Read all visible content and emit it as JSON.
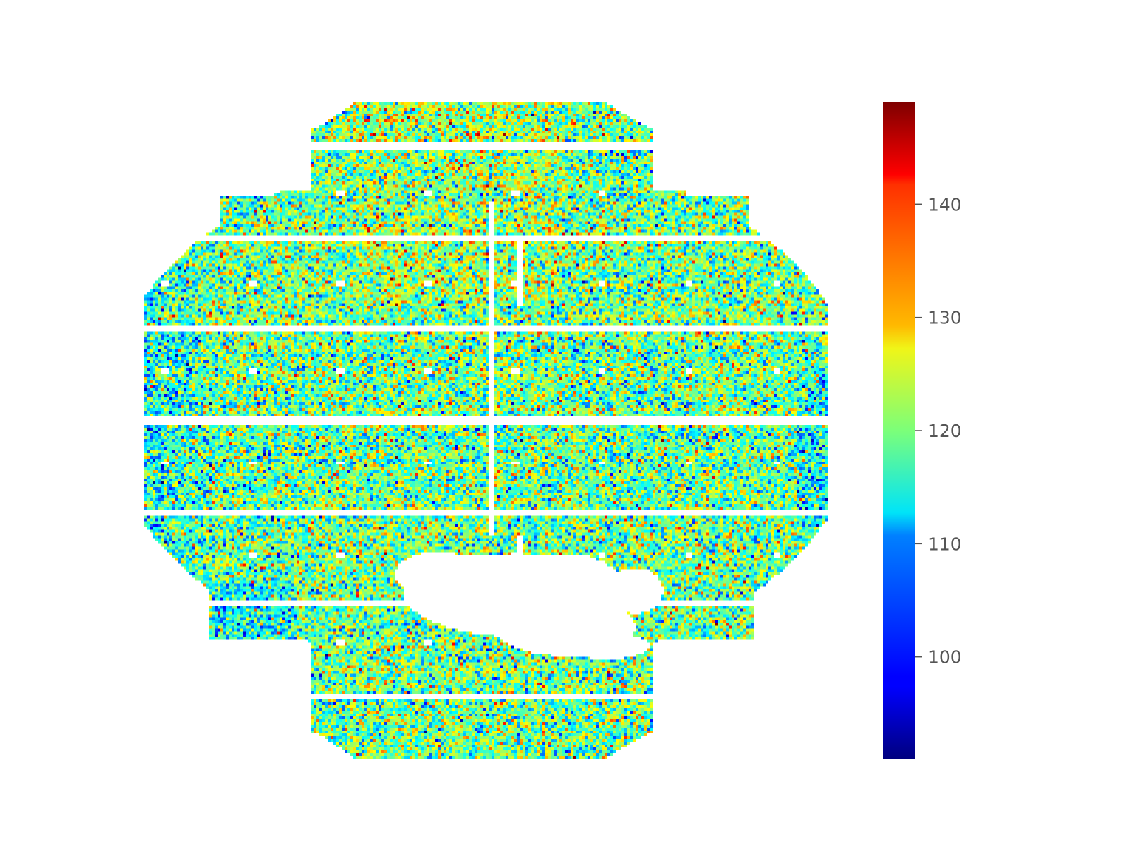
{
  "chart_data": {
    "type": "heatmap",
    "title": "",
    "xlabel": "",
    "ylabel": "",
    "grid": false,
    "axes_visible": false,
    "colormap": "jet",
    "colorbar": {
      "placement": "right",
      "vmin": 91,
      "vmax": 149,
      "ticks": [
        {
          "value": 100,
          "label": "100"
        },
        {
          "value": 110,
          "label": "110"
        },
        {
          "value": 120,
          "label": "120"
        },
        {
          "value": 130,
          "label": "130"
        },
        {
          "value": 140,
          "label": "140"
        }
      ]
    },
    "value_distribution": {
      "mean": 119,
      "spread": 8
    },
    "notes_visible": "detector-style tiled mosaic with masked (white) gaps and a large masked region in the lower center"
  }
}
